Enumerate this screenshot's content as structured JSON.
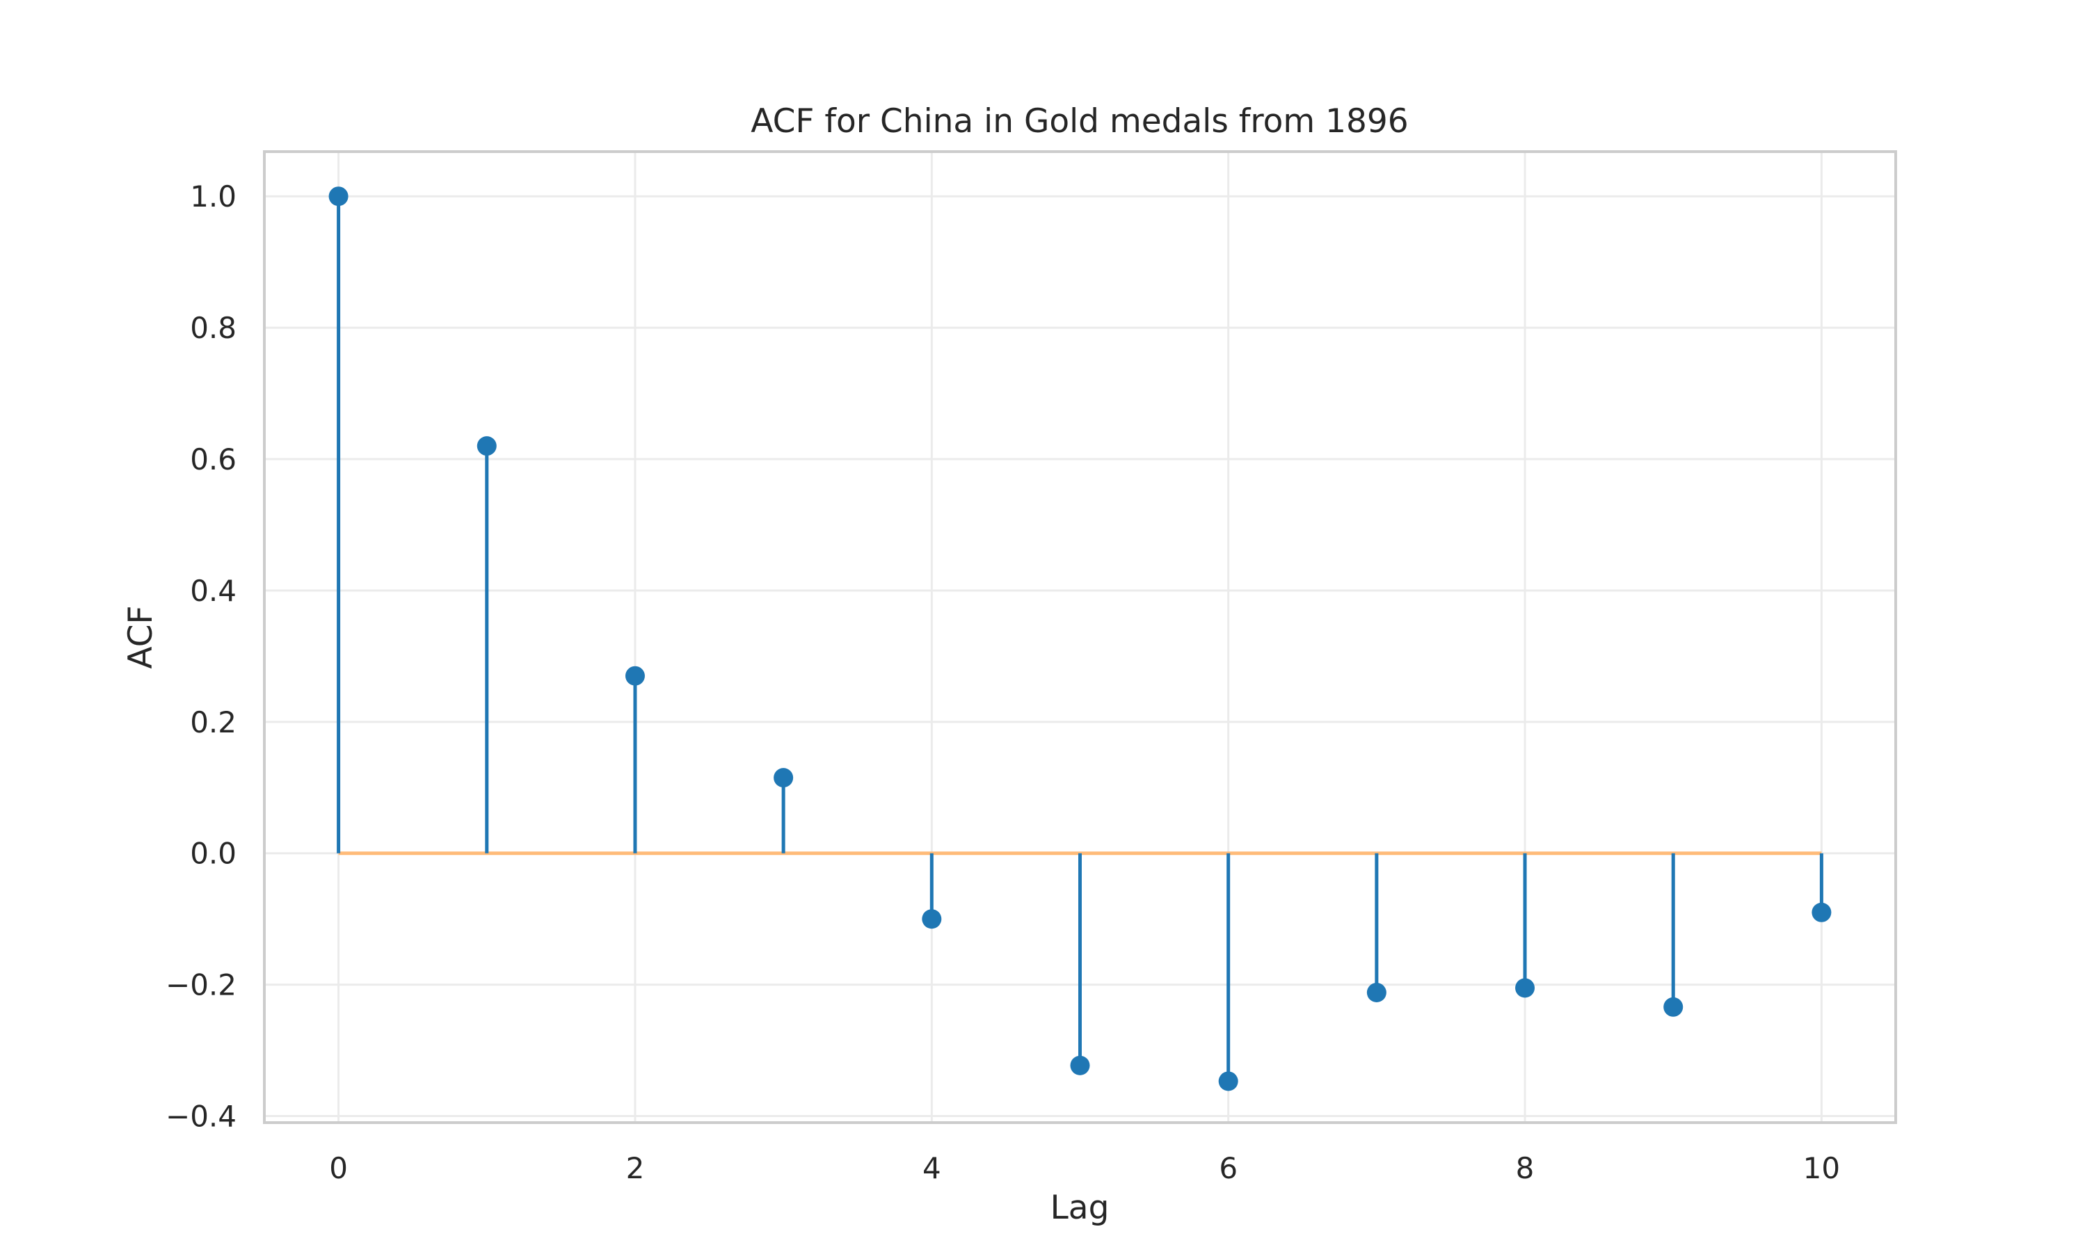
{
  "chart_data": {
    "type": "stem",
    "title": "ACF for China in Gold medals from 1896",
    "xlabel": "Lag",
    "ylabel": "ACF",
    "x": [
      0,
      1,
      2,
      3,
      4,
      5,
      6,
      7,
      8,
      9,
      10
    ],
    "values": [
      1.0,
      0.62,
      0.27,
      0.115,
      -0.1,
      -0.323,
      -0.347,
      -0.212,
      -0.205,
      -0.234,
      -0.09
    ],
    "xlim": [
      -0.5,
      10.5
    ],
    "ylim": [
      -0.41,
      1.068
    ],
    "xticks": [
      0,
      2,
      4,
      6,
      8,
      10
    ],
    "xtick_labels": [
      "0",
      "2",
      "4",
      "6",
      "8",
      "10"
    ],
    "yticks": [
      -0.4,
      -0.2,
      0.0,
      0.2,
      0.4,
      0.6,
      0.8,
      1.0
    ],
    "ytick_labels": [
      "−0.4",
      "−0.2",
      "0.0",
      "0.2",
      "0.4",
      "0.6",
      "0.8",
      "1.0"
    ],
    "grid": true,
    "colors": {
      "stem": "#1f77b4",
      "baseline": "#ffbb78",
      "grid": "#ebebeb",
      "frame": "#cccccc",
      "text": "#262626"
    }
  }
}
